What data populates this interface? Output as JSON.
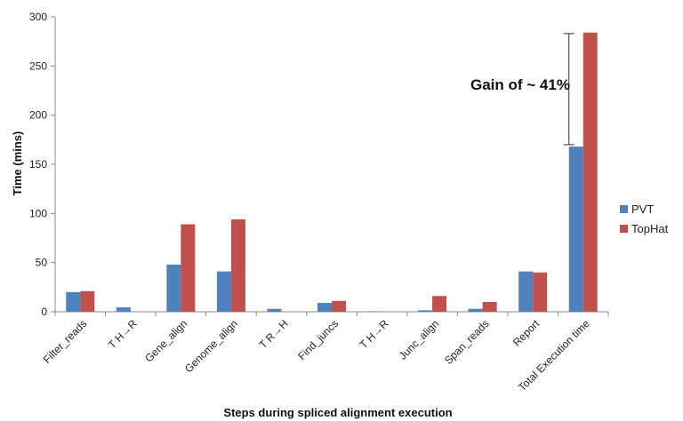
{
  "chart_data": {
    "type": "bar",
    "title": "",
    "xlabel": "Steps during spliced alignment execution",
    "ylabel": "Time (mins)",
    "ylim": [
      0,
      300
    ],
    "yticks": [
      0,
      50,
      100,
      150,
      200,
      250,
      300
    ],
    "categories": [
      "Filter_reads",
      "T H→R",
      "Gene_align",
      "Genome_align",
      "T R→H",
      "Find_juncs",
      "T H→R",
      "Junc_align",
      "Span_reads",
      "Report",
      "Total Execution time"
    ],
    "series": [
      {
        "name": "PVT",
        "color": "#4f81bd",
        "values": [
          20,
          4.5,
          48,
          41,
          3,
          9,
          0.5,
          1.5,
          3,
          41,
          168
        ]
      },
      {
        "name": "TopHat",
        "color": "#c0504d",
        "values": [
          21,
          0,
          89,
          94,
          0,
          11,
          0,
          16,
          10,
          40,
          284
        ]
      }
    ],
    "annotation": {
      "text": "Gain of ~ 41%",
      "from": 170,
      "to": 283,
      "category": "Total Execution time"
    },
    "grid": false,
    "legend_position": "right"
  }
}
